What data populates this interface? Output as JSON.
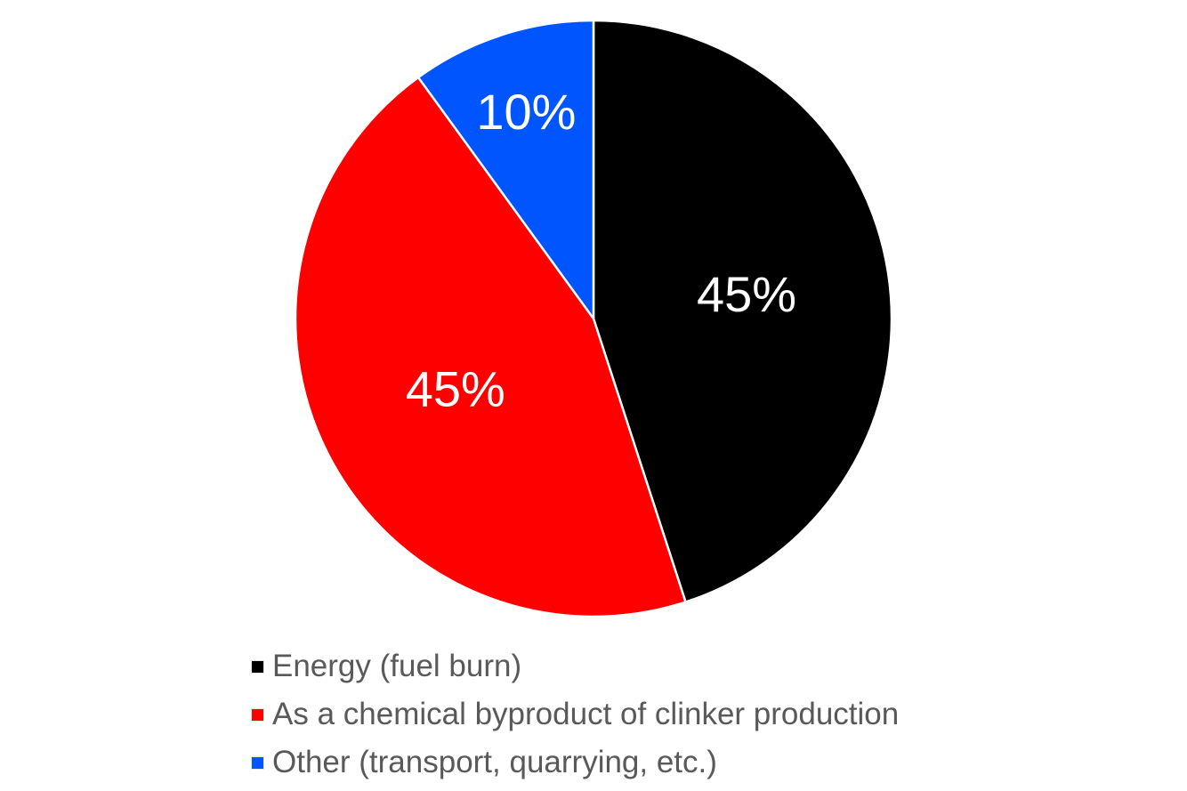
{
  "chart_data": {
    "type": "pie",
    "categories": [
      "Energy (fuel burn)",
      "As a chemical byproduct of clinker production",
      "Other (transport, quarrying, etc.)"
    ],
    "values": [
      45,
      45,
      10
    ],
    "data_labels": [
      "45%",
      "45%",
      "10%"
    ],
    "colors": [
      "#000000",
      "#ff0000",
      "#0055ff"
    ],
    "start_angle_deg": 0,
    "direction": "clockwise",
    "legend_position": "bottom",
    "title": ""
  }
}
